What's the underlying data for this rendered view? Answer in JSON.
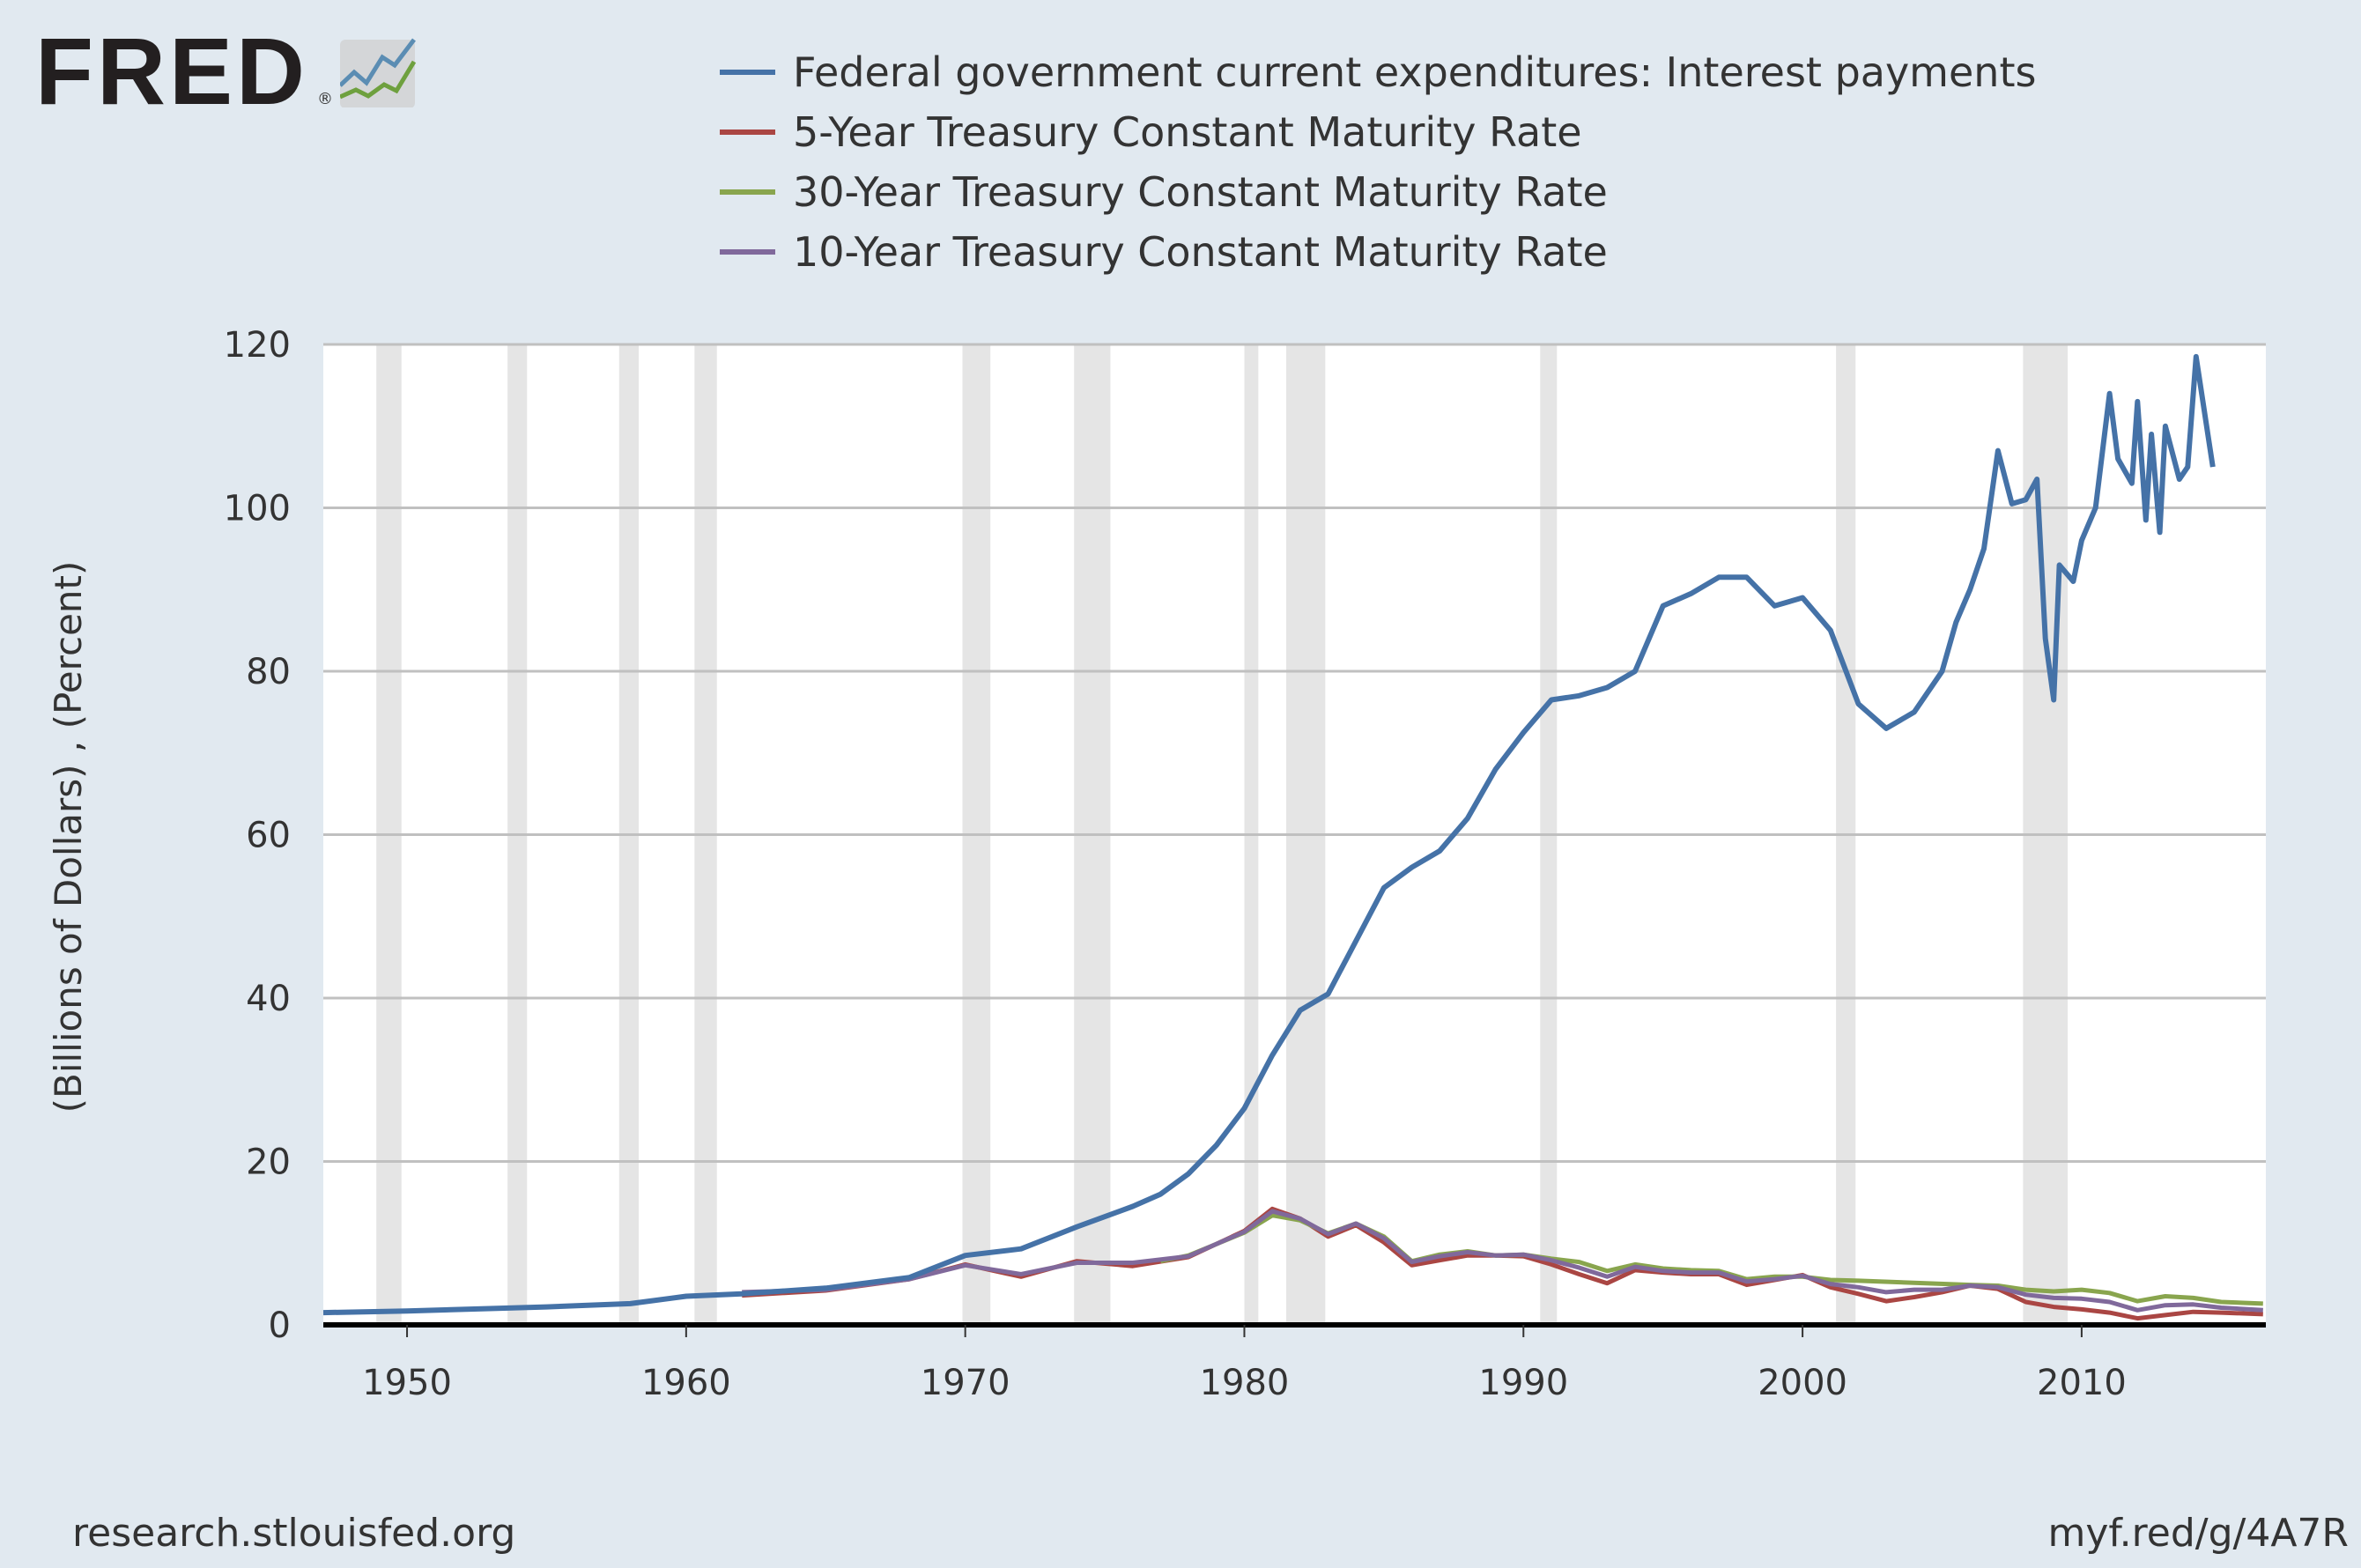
{
  "logo": {
    "text": "FRED",
    "registered": "®"
  },
  "footer": {
    "source": "research.stlouisfed.org",
    "short_link": "myf.red/g/4A7R"
  },
  "chart_data": {
    "type": "line",
    "title": "",
    "xlabel": "",
    "ylabel": "(Billions of Dollars) , (Percent)",
    "xlim": [
      1947,
      2016.6
    ],
    "ylim": [
      0,
      120
    ],
    "yticks": [
      0,
      20,
      40,
      60,
      80,
      100,
      120
    ],
    "xticks": [
      1950,
      1960,
      1970,
      1980,
      1990,
      2000,
      2010
    ],
    "grid": true,
    "legend_position": "top",
    "recessions": [
      [
        1948.9,
        1949.8
      ],
      [
        1953.6,
        1954.3
      ],
      [
        1957.6,
        1958.3
      ],
      [
        1960.3,
        1961.1
      ],
      [
        1969.9,
        1970.9
      ],
      [
        1973.9,
        1975.2
      ],
      [
        1980.0,
        1980.5
      ],
      [
        1981.5,
        1982.9
      ],
      [
        1990.6,
        1991.2
      ],
      [
        2001.2,
        2001.9
      ],
      [
        2007.9,
        2009.5
      ]
    ],
    "series": [
      {
        "name": "Federal government current expenditures: Interest payments",
        "color": "#4572a7",
        "x": [
          1947,
          1950,
          1955,
          1958,
          1960,
          1962,
          1965,
          1968,
          1970,
          1972,
          1974,
          1976,
          1977,
          1978,
          1979,
          1980,
          1981,
          1982,
          1983,
          1984,
          1985,
          1986,
          1987,
          1988,
          1989,
          1990,
          1991,
          1992,
          1993,
          1994,
          1995,
          1996,
          1997,
          1998,
          1999,
          2000,
          2001,
          2002,
          2003,
          2004,
          2005,
          2005.5,
          2006,
          2006.5,
          2007,
          2007.5,
          2008,
          2008.4,
          2008.7,
          2009,
          2009.2,
          2009.7,
          2010,
          2010.5,
          2011,
          2011.3,
          2011.8,
          2012,
          2012.3,
          2012.5,
          2012.8,
          2013,
          2013.5,
          2013.8,
          2014.1,
          2014.7
        ],
        "y": [
          1.5,
          1.7,
          2.2,
          2.6,
          3.5,
          3.8,
          4.5,
          5.8,
          8.5,
          9.3,
          12,
          14.5,
          16,
          18.5,
          22,
          26.5,
          33,
          38.5,
          40.5,
          47,
          53.5,
          56,
          58,
          62,
          68,
          72.5,
          76.5,
          77,
          78,
          80,
          88,
          89.5,
          91.5,
          91.5,
          88,
          89,
          85,
          76,
          73,
          75,
          80,
          86,
          90,
          95,
          107,
          100.5,
          101,
          103.5,
          84,
          76.5,
          93,
          91,
          96,
          100,
          114,
          106,
          103,
          113,
          98.5,
          109,
          97,
          110,
          103.5,
          105,
          118.5,
          105
        ]
      },
      {
        "name": "5-Year Treasury Constant Maturity Rate",
        "color": "#aa4643",
        "x": [
          1962,
          1965,
          1968,
          1970,
          1972,
          1974,
          1976,
          1978,
          1980,
          1981,
          1982,
          1983,
          1984,
          1985,
          1986,
          1987,
          1988,
          1989,
          1990,
          1991,
          1992,
          1993,
          1994,
          1995,
          1996,
          1997,
          1998,
          1999,
          2000,
          2001,
          2002,
          2003,
          2004,
          2005,
          2006,
          2007,
          2008,
          2009,
          2010,
          2011,
          2012,
          2013,
          2014,
          2015,
          2016.5
        ],
        "y": [
          3.6,
          4.2,
          5.6,
          7.4,
          5.9,
          7.8,
          7.2,
          8.3,
          11.5,
          14.2,
          13.0,
          10.8,
          12.2,
          10.1,
          7.3,
          7.9,
          8.5,
          8.5,
          8.4,
          7.4,
          6.2,
          5.1,
          6.7,
          6.4,
          6.2,
          6.2,
          4.9,
          5.5,
          6.1,
          4.6,
          3.8,
          2.9,
          3.4,
          4.0,
          4.8,
          4.4,
          2.8,
          2.2,
          1.9,
          1.5,
          0.8,
          1.2,
          1.6,
          1.5,
          1.3
        ]
      },
      {
        "name": "30-Year Treasury Constant Maturity Rate",
        "color": "#89a54e",
        "x": [
          1977,
          1978,
          1980,
          1981,
          1982,
          1983,
          1984,
          1985,
          1986,
          1987,
          1988,
          1989,
          1990,
          1991,
          1992,
          1993,
          1994,
          1995,
          1996,
          1997,
          1998,
          1999,
          2000,
          2001,
          2002,
          2006,
          2007,
          2008,
          2009,
          2010,
          2011,
          2012,
          2013,
          2014,
          2015,
          2016.5
        ],
        "y": [
          7.8,
          8.5,
          11.3,
          13.4,
          12.8,
          11.2,
          12.4,
          10.8,
          7.8,
          8.6,
          9.0,
          8.5,
          8.6,
          8.1,
          7.7,
          6.6,
          7.4,
          6.9,
          6.7,
          6.6,
          5.6,
          5.9,
          5.9,
          5.5,
          5.4,
          4.9,
          4.8,
          4.3,
          4.1,
          4.3,
          3.9,
          2.9,
          3.5,
          3.3,
          2.8,
          2.6
        ]
      },
      {
        "name": "10-Year Treasury Constant Maturity Rate",
        "color": "#80699b",
        "x": [
          1962,
          1965,
          1968,
          1970,
          1972,
          1974,
          1976,
          1978,
          1980,
          1981,
          1982,
          1983,
          1984,
          1985,
          1986,
          1987,
          1988,
          1989,
          1990,
          1991,
          1992,
          1993,
          1994,
          1995,
          1996,
          1997,
          1998,
          1999,
          2000,
          2001,
          2002,
          2003,
          2004,
          2005,
          2006,
          2007,
          2008,
          2009,
          2010,
          2011,
          2012,
          2013,
          2014,
          2015,
          2016.5
        ],
        "y": [
          4.0,
          4.3,
          5.6,
          7.3,
          6.2,
          7.6,
          7.6,
          8.4,
          11.4,
          13.9,
          13.0,
          11.1,
          12.4,
          10.6,
          7.7,
          8.4,
          8.9,
          8.5,
          8.6,
          7.9,
          7.0,
          5.9,
          7.1,
          6.6,
          6.4,
          6.4,
          5.3,
          5.6,
          6.0,
          5.0,
          4.6,
          4.0,
          4.3,
          4.3,
          4.8,
          4.6,
          3.7,
          3.3,
          3.2,
          2.8,
          1.8,
          2.4,
          2.5,
          2.1,
          1.8
        ]
      }
    ]
  }
}
